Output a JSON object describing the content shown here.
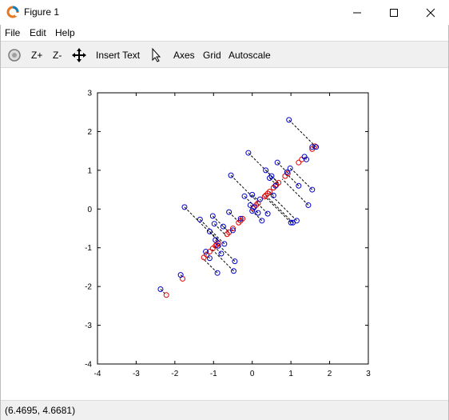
{
  "window": {
    "title": "Figure 1"
  },
  "menu": [
    "File",
    "Edit",
    "Help"
  ],
  "toolbar": {
    "zoom_in": "Z+",
    "zoom_out": "Z-",
    "insert_text": "Insert Text",
    "axes": "Axes",
    "grid": "Grid",
    "autoscale": "Autoscale"
  },
  "status": {
    "coords": "(6.4695, 4.6681)"
  },
  "colors": {
    "original": "#0000c8",
    "projected": "#e00000",
    "lines": "#000000"
  },
  "chart_data": {
    "type": "scatter",
    "xlim": [
      -4,
      3
    ],
    "ylim": [
      -4,
      3
    ],
    "xticks": [
      "-4",
      "-3",
      "-2",
      "-1",
      "0",
      "1",
      "2",
      "3"
    ],
    "yticks": [
      "3",
      "2",
      "1",
      "0",
      "-1",
      "-2",
      "-3",
      "-4"
    ],
    "grid": false,
    "series": [
      {
        "marker": "circle",
        "color": "blue",
        "points": [
          [
            -2.37,
            -2.07
          ],
          [
            -1.85,
            -1.7
          ],
          [
            -1.75,
            0.05
          ],
          [
            -1.35,
            -0.27
          ],
          [
            -1.2,
            -1.1
          ],
          [
            -1.1,
            -0.58
          ],
          [
            -1.1,
            -1.27
          ],
          [
            -1.02,
            -0.18
          ],
          [
            -0.98,
            -0.38
          ],
          [
            -0.95,
            -0.8
          ],
          [
            -0.9,
            -1.65
          ],
          [
            -0.88,
            -0.95
          ],
          [
            -0.8,
            -1.15
          ],
          [
            -0.75,
            -0.45
          ],
          [
            -0.72,
            -0.9
          ],
          [
            -0.6,
            -0.08
          ],
          [
            -0.55,
            0.87
          ],
          [
            -0.5,
            -0.55
          ],
          [
            -0.48,
            -1.6
          ],
          [
            -0.45,
            -1.35
          ],
          [
            -0.3,
            -0.25
          ],
          [
            -0.2,
            0.33
          ],
          [
            -0.1,
            1.45
          ],
          [
            -0.05,
            0.1
          ],
          [
            0.0,
            -0.05
          ],
          [
            0.0,
            0.37
          ],
          [
            0.05,
            0.05
          ],
          [
            0.15,
            -0.1
          ],
          [
            0.2,
            0.25
          ],
          [
            0.25,
            -0.3
          ],
          [
            0.35,
            1.0
          ],
          [
            0.4,
            -0.12
          ],
          [
            0.45,
            0.8
          ],
          [
            0.5,
            0.85
          ],
          [
            0.55,
            0.35
          ],
          [
            0.6,
            0.6
          ],
          [
            0.65,
            1.2
          ],
          [
            0.9,
            0.95
          ],
          [
            0.95,
            2.3
          ],
          [
            0.98,
            1.05
          ],
          [
            1.0,
            -0.35
          ],
          [
            1.05,
            -0.35
          ],
          [
            1.15,
            -0.3
          ],
          [
            1.2,
            0.6
          ],
          [
            1.35,
            1.35
          ],
          [
            1.4,
            1.28
          ],
          [
            1.45,
            0.1
          ],
          [
            1.55,
            0.5
          ],
          [
            1.55,
            1.6
          ],
          [
            1.65,
            1.6
          ]
        ]
      },
      {
        "marker": "circle",
        "color": "red",
        "points": [
          [
            -2.22,
            -2.22
          ],
          [
            -1.8,
            -1.8
          ],
          [
            -1.25,
            -1.25
          ],
          [
            -1.18,
            -1.18
          ],
          [
            -1.1,
            -1.1
          ],
          [
            -1.02,
            -1.02
          ],
          [
            -0.95,
            -0.95
          ],
          [
            -0.92,
            -0.92
          ],
          [
            -0.88,
            -0.88
          ],
          [
            -0.65,
            -0.65
          ],
          [
            -0.6,
            -0.6
          ],
          [
            -0.5,
            -0.5
          ],
          [
            -0.35,
            -0.35
          ],
          [
            -0.3,
            -0.3
          ],
          [
            -0.25,
            -0.25
          ],
          [
            0.02,
            0.02
          ],
          [
            0.05,
            0.05
          ],
          [
            0.1,
            0.1
          ],
          [
            0.15,
            0.15
          ],
          [
            0.32,
            0.32
          ],
          [
            0.35,
            0.35
          ],
          [
            0.4,
            0.4
          ],
          [
            0.45,
            0.45
          ],
          [
            0.55,
            0.55
          ],
          [
            0.62,
            0.62
          ],
          [
            0.68,
            0.68
          ],
          [
            0.85,
            0.85
          ],
          [
            0.92,
            0.92
          ],
          [
            1.2,
            1.2
          ],
          [
            1.28,
            1.28
          ],
          [
            1.55,
            1.55
          ],
          [
            1.62,
            1.62
          ]
        ]
      }
    ]
  }
}
